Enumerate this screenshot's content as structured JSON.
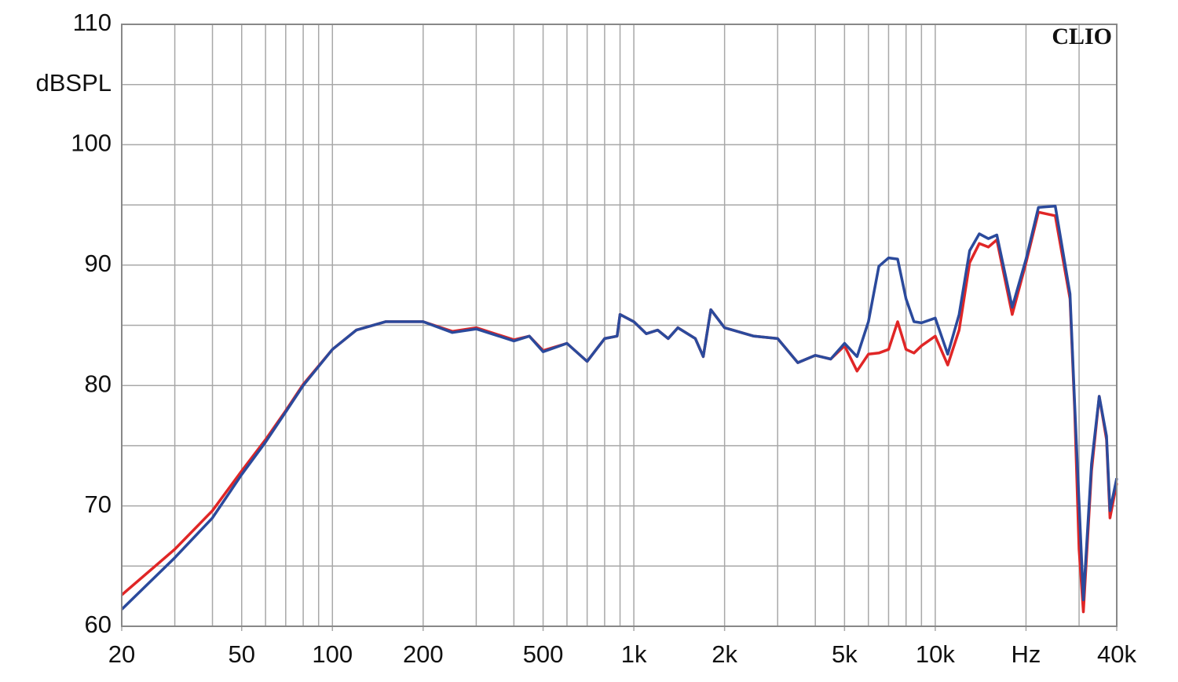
{
  "chart_data": {
    "type": "line",
    "y_label": "dBSPL",
    "annotation": "CLIO",
    "log_x": true,
    "grid": true,
    "xlim": [
      20,
      40000
    ],
    "ylim": [
      60,
      110
    ],
    "xticks": [
      20,
      50,
      100,
      200,
      500,
      {
        "value": 1000,
        "label": "1k"
      },
      {
        "value": 2000,
        "label": "2k"
      },
      {
        "value": 5000,
        "label": "5k"
      },
      {
        "value": 10000,
        "label": "10k"
      },
      {
        "value": 20000,
        "label": "Hz"
      },
      {
        "value": 40000,
        "label": "40k"
      }
    ],
    "xgrid": [
      20,
      30,
      40,
      50,
      60,
      70,
      80,
      90,
      100,
      200,
      300,
      400,
      500,
      600,
      700,
      800,
      900,
      1000,
      2000,
      3000,
      4000,
      5000,
      6000,
      7000,
      8000,
      9000,
      10000,
      20000,
      30000,
      40000
    ],
    "yticks": [
      60,
      70,
      80,
      90,
      100,
      110
    ],
    "ygrid": [
      65,
      75,
      85,
      95,
      105
    ],
    "x": [
      20,
      30,
      40,
      50,
      60,
      70,
      80,
      100,
      120,
      150,
      200,
      250,
      300,
      400,
      450,
      500,
      600,
      700,
      800,
      880,
      900,
      1000,
      1100,
      1200,
      1300,
      1400,
      1600,
      1700,
      1800,
      2000,
      2500,
      3000,
      3500,
      4000,
      4500,
      5000,
      5500,
      6000,
      6500,
      7000,
      7500,
      8000,
      8500,
      9000,
      10000,
      11000,
      12000,
      13000,
      14000,
      15000,
      16000,
      18000,
      20000,
      22000,
      25000,
      28000,
      29000,
      30000,
      31000,
      33000,
      35000,
      37000,
      38000,
      40000
    ],
    "series": [
      {
        "name": "red",
        "color": "#e02626",
        "values": [
          62.6,
          66.4,
          69.6,
          72.9,
          75.5,
          77.9,
          80.1,
          83.0,
          84.6,
          85.3,
          85.3,
          84.5,
          84.8,
          83.8,
          84.1,
          82.9,
          83.5,
          82.0,
          83.9,
          84.1,
          85.9,
          85.3,
          84.3,
          84.6,
          83.9,
          84.8,
          83.9,
          82.4,
          86.3,
          84.8,
          84.1,
          83.9,
          81.9,
          82.5,
          82.2,
          83.3,
          81.2,
          82.6,
          82.7,
          83.0,
          85.3,
          83.0,
          82.7,
          83.3,
          84.1,
          81.7,
          84.6,
          90.2,
          91.8,
          91.5,
          92.1,
          85.9,
          90.2,
          94.4,
          94.1,
          87.2,
          78.0,
          66.4,
          61.2,
          72.9,
          79.1,
          75.5,
          69.0,
          71.9
        ]
      },
      {
        "name": "blue",
        "color": "#2b4a9c",
        "values": [
          61.4,
          65.7,
          69.0,
          72.6,
          75.3,
          77.8,
          80.0,
          83.0,
          84.6,
          85.3,
          85.3,
          84.4,
          84.7,
          83.7,
          84.1,
          82.8,
          83.5,
          82.0,
          83.9,
          84.1,
          85.9,
          85.3,
          84.3,
          84.6,
          83.9,
          84.8,
          83.9,
          82.4,
          86.3,
          84.8,
          84.1,
          83.9,
          81.9,
          82.5,
          82.2,
          83.5,
          82.4,
          85.3,
          89.9,
          90.6,
          90.5,
          87.2,
          85.3,
          85.2,
          85.6,
          82.6,
          85.9,
          91.2,
          92.6,
          92.2,
          92.5,
          86.5,
          90.5,
          94.8,
          94.9,
          87.6,
          78.5,
          70.3,
          62.2,
          73.5,
          79.1,
          75.8,
          69.6,
          72.3
        ]
      }
    ]
  }
}
